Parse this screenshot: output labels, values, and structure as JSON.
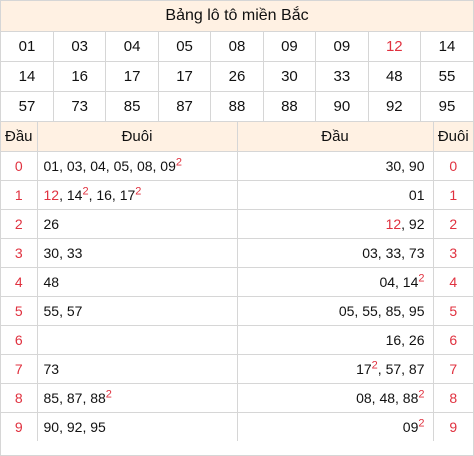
{
  "title": "Bảng lô tô miền Bắc",
  "numbers": [
    [
      "01",
      "03",
      "04",
      "05",
      "08",
      "09",
      "09",
      "12",
      "14"
    ],
    [
      "14",
      "16",
      "17",
      "17",
      "26",
      "30",
      "33",
      "48",
      "55"
    ],
    [
      "57",
      "73",
      "85",
      "87",
      "88",
      "88",
      "90",
      "92",
      "95"
    ]
  ],
  "highlighted_number": "12",
  "headers": {
    "dau_left": "Đầu",
    "duoi_left": "Đuôi",
    "dau_right": "Đầu",
    "duoi_right": "Đuôi"
  },
  "rows": [
    {
      "digit": "0",
      "tails": [
        {
          "n": "01"
        },
        {
          "n": "03"
        },
        {
          "n": "04"
        },
        {
          "n": "05"
        },
        {
          "n": "08"
        },
        {
          "n": "09",
          "c": "2"
        }
      ],
      "heads": [
        {
          "n": "30"
        },
        {
          "n": "90"
        }
      ]
    },
    {
      "digit": "1",
      "tails": [
        {
          "n": "12",
          "hot": true
        },
        {
          "n": "14",
          "c": "2"
        },
        {
          "n": "16"
        },
        {
          "n": "17",
          "c": "2"
        }
      ],
      "heads": [
        {
          "n": "01"
        }
      ]
    },
    {
      "digit": "2",
      "tails": [
        {
          "n": "26"
        }
      ],
      "heads": [
        {
          "n": "12",
          "hot": true
        },
        {
          "n": "92"
        }
      ]
    },
    {
      "digit": "3",
      "tails": [
        {
          "n": "30"
        },
        {
          "n": "33"
        }
      ],
      "heads": [
        {
          "n": "03"
        },
        {
          "n": "33"
        },
        {
          "n": "73"
        }
      ]
    },
    {
      "digit": "4",
      "tails": [
        {
          "n": "48"
        }
      ],
      "heads": [
        {
          "n": "04"
        },
        {
          "n": "14",
          "c": "2"
        }
      ]
    },
    {
      "digit": "5",
      "tails": [
        {
          "n": "55"
        },
        {
          "n": "57"
        }
      ],
      "heads": [
        {
          "n": "05"
        },
        {
          "n": "55"
        },
        {
          "n": "85"
        },
        {
          "n": "95"
        }
      ]
    },
    {
      "digit": "6",
      "tails": [],
      "heads": [
        {
          "n": "16"
        },
        {
          "n": "26"
        }
      ]
    },
    {
      "digit": "7",
      "tails": [
        {
          "n": "73"
        }
      ],
      "heads": [
        {
          "n": "17",
          "c": "2"
        },
        {
          "n": "57"
        },
        {
          "n": "87"
        }
      ]
    },
    {
      "digit": "8",
      "tails": [
        {
          "n": "85"
        },
        {
          "n": "87"
        },
        {
          "n": "88",
          "c": "2"
        }
      ],
      "heads": [
        {
          "n": "08"
        },
        {
          "n": "48"
        },
        {
          "n": "88",
          "c": "2"
        }
      ]
    },
    {
      "digit": "9",
      "tails": [
        {
          "n": "90"
        },
        {
          "n": "92"
        },
        {
          "n": "95"
        }
      ],
      "heads": [
        {
          "n": "09",
          "c": "2"
        }
      ]
    }
  ]
}
